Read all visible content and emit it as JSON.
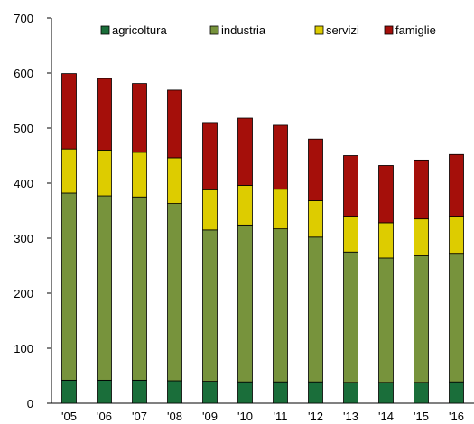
{
  "chart_data": {
    "type": "bar",
    "stacked": true,
    "categories": [
      "'05",
      "'06",
      "'07",
      "'08",
      "'09",
      "'10",
      "'11",
      "'12",
      "'13",
      "'14",
      "'15",
      "'16"
    ],
    "series": [
      {
        "name": "agricoltura",
        "color": "#1a6e3a",
        "values": [
          42,
          42,
          42,
          41,
          40,
          39,
          39,
          39,
          38,
          38,
          38,
          39
        ]
      },
      {
        "name": "industria",
        "color": "#77933c",
        "values": [
          340,
          335,
          333,
          322,
          275,
          285,
          278,
          263,
          237,
          226,
          230,
          232
        ]
      },
      {
        "name": "servizi",
        "color": "#ddcc00",
        "values": [
          80,
          83,
          81,
          83,
          73,
          72,
          72,
          66,
          65,
          64,
          67,
          69
        ]
      },
      {
        "name": "famiglie",
        "color": "#a50f0a",
        "values": [
          137,
          130,
          125,
          123,
          122,
          122,
          116,
          112,
          110,
          104,
          107,
          112
        ]
      }
    ],
    "ylim": [
      0,
      700
    ],
    "yticks": [
      0,
      100,
      200,
      300,
      400,
      500,
      600,
      700
    ],
    "grid": false,
    "legend": "top"
  }
}
